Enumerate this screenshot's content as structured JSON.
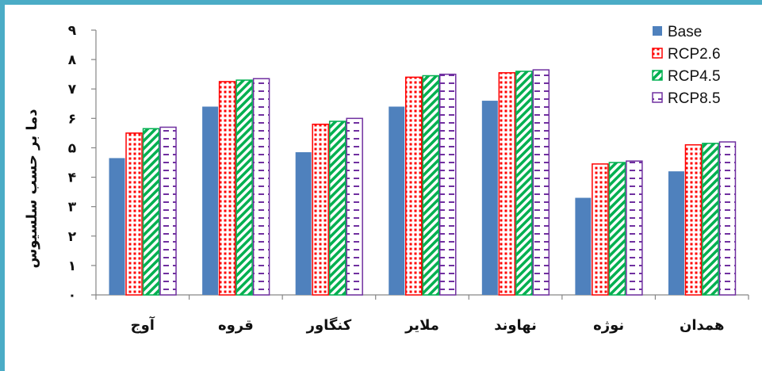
{
  "chart_data": {
    "type": "bar",
    "title": "",
    "xlabel": "",
    "ylabel": "دما بر حسب سلسیوس",
    "ylim": [
      0,
      9
    ],
    "yticks": [
      "۰",
      "۱",
      "۲",
      "۳",
      "۴",
      "۵",
      "۶",
      "۷",
      "۸",
      "۹"
    ],
    "categories": [
      "آوج",
      "قروه",
      "کنگاور",
      "ملایر",
      "نهاوند",
      "نوژه",
      "همدان"
    ],
    "grid": false,
    "legend_position": "top-right",
    "series": [
      {
        "name": "Base",
        "values": [
          4.65,
          6.4,
          4.85,
          6.4,
          6.6,
          3.3,
          4.2
        ],
        "color": "#4f81bd",
        "pattern": "solid"
      },
      {
        "name": "RCP2.6",
        "values": [
          5.5,
          7.25,
          5.8,
          7.4,
          7.55,
          4.45,
          5.1
        ],
        "color": "#ff0000",
        "pattern": "dots"
      },
      {
        "name": "RCP4.5",
        "values": [
          5.65,
          7.3,
          5.9,
          7.45,
          7.6,
          4.5,
          5.15
        ],
        "color": "#00b050",
        "pattern": "diagonal"
      },
      {
        "name": "RCP8.5",
        "values": [
          5.7,
          7.35,
          6.0,
          7.5,
          7.65,
          4.55,
          5.2
        ],
        "color": "#7030a0",
        "pattern": "dashes"
      }
    ]
  }
}
